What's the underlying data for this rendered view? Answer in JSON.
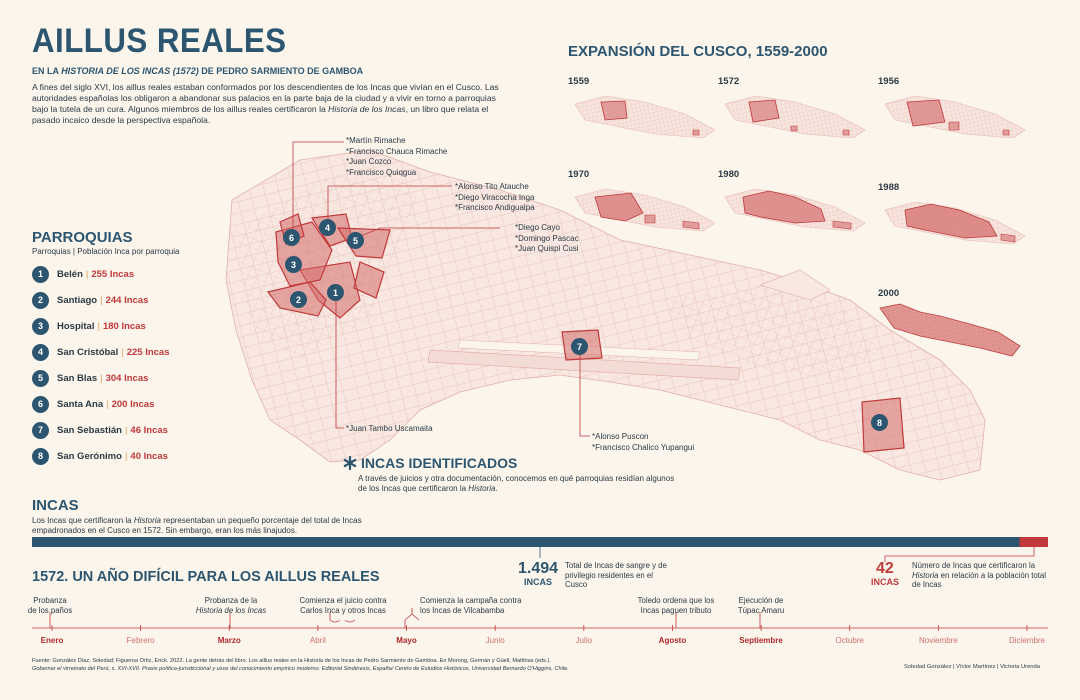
{
  "header": {
    "title": "AILLUS REALES",
    "subtitle_pre": "EN LA",
    "subtitle_italic": "HISTORIA DE LOS INCAS",
    "subtitle_year": "(1572)",
    "subtitle_post": "DE PEDRO SARMIENTO DE GAMBOA",
    "intro": "A fines del siglo XVI, los aillus reales estaban conformados por los descendientes de los Incas que vivían en el Cusco. Las autoridades españolas los obligaron a abandonar sus palacios en la parte baja de la ciudad y a vivir en torno a parroquias bajo la tutela de un cura. Algunos miembros de los aillus reales certificaron la",
    "intro_italic": "Historia de los Incas",
    "intro_post": ", un libro que relata el pasado incaico desde la perspectiva española."
  },
  "parroquias": {
    "title": "PARROQUIAS",
    "subtitle": "Parroquias | Población Inca por parroquia",
    "items": [
      {
        "n": "1",
        "name": "Belén",
        "value": "255 Incas"
      },
      {
        "n": "2",
        "name": "Santiago",
        "value": "244 Incas"
      },
      {
        "n": "3",
        "name": "Hospital",
        "value": "180 Incas"
      },
      {
        "n": "4",
        "name": "San Cristóbal",
        "value": "225 Incas"
      },
      {
        "n": "5",
        "name": "San Blas",
        "value": "304 Incas"
      },
      {
        "n": "6",
        "name": "Santa Ana",
        "value": "200 Incas"
      },
      {
        "n": "7",
        "name": "San Sebastián",
        "value": "46 Incas"
      },
      {
        "n": "8",
        "name": "San Gerónimo",
        "value": "40 Incas"
      }
    ]
  },
  "map_markers": [
    "1",
    "2",
    "3",
    "4",
    "5",
    "6",
    "7",
    "8"
  ],
  "name_groups": {
    "g1": [
      "*Martín Rimache",
      "*Francisco Chauca Rimache",
      "*Juan Cozco",
      "*Francisco Quiqgua"
    ],
    "g2": [
      "*Alonso Tito Atauche",
      "*Diego Viracocha Inga",
      "*Francisco Andigualpa"
    ],
    "g3": [
      "*Diego Cayo",
      "*Domingo Pascac",
      "*Juan Quispi Cusi"
    ],
    "g4": [
      "*Juan Tambo Uscamaita"
    ],
    "g5": [
      "*Alonso Puscon",
      "*Francisco Chalico Yupangui"
    ]
  },
  "incas_identificados": {
    "title": "INCAS IDENTIFICADOS",
    "text_pre": "A través de juicios y otra documentación, conocemos en qué parroquias residían algunos de los Incas que certificaron la",
    "text_italic": "Historia",
    "text_post": ".",
    "icon": "asterisk-icon"
  },
  "expansion": {
    "title": "EXPANSIÓN DEL CUSCO, 1559-2000",
    "years": [
      "1559",
      "1572",
      "1956",
      "1970",
      "1980",
      "1988",
      "2000"
    ]
  },
  "incas_section": {
    "title": "INCAS",
    "text_pre": "Los Incas que certificaron la",
    "text_italic": "Historia",
    "text_post": "representaban un pequeño porcentaje del total de Incas empadronados en el Cusco en 1572. Sin embargo, eran los más linajudos.",
    "total_value": 1494,
    "total_number": "1.494",
    "total_unit": "INCAS",
    "total_desc": "Total de Incas de sangre y de privilegio residentes en el Cusco",
    "certified_value": 42,
    "certified_number": "42",
    "certified_unit": "INCAS",
    "certified_desc_pre": "Número de Incas que certificaron la",
    "certified_desc_italic": "Historia",
    "certified_desc_post": "en relación a la población total de Incas"
  },
  "timeline": {
    "title": "1572. UN AÑO DIFÍCIL PARA LOS AILLUS REALES",
    "months": [
      "Enero",
      "Febrero",
      "Marzo",
      "Abril",
      "Mayo",
      "Junio",
      "Julio",
      "Agosto",
      "Septiembre",
      "Octubre",
      "Noviembre",
      "Diciembre"
    ],
    "events": [
      {
        "l1": "Probanza",
        "l2": "de los paños"
      },
      {
        "l1": "Probanza de la",
        "l2": "Historia de los Incas"
      },
      {
        "l1": "Comienza el juicio contra",
        "l2": "Carlos Inca y otros Incas"
      },
      {
        "l1": "Comienza la campaña contra",
        "l2": "los Incas de Vilcabamba"
      },
      {
        "l1": "Toledo ordena que los",
        "l2": "Incas paguen tributo"
      },
      {
        "l1": "Ejecución de",
        "l2": "Túpac Amaru"
      }
    ]
  },
  "footer": {
    "l1": "Fuente: González Díaz, Soledad; Figueroa Ortiz, Erick. 2022. La gente detrás del libro. Los aillus reales en la Historia de los Incas de Pedro Sarmiento de Gamboa. En Morong, Germán y Güell, Matthias (eds.).",
    "l2": "Gobernar el virreinato del Perú, s. XVI-XVII. Praxis política-jurisdiccional y usos del conocimiento empírico moderno. Editorial Sindéresis, España/ Centro de Estudios Históricos, Universidad Bernardo O'Higgins, Chile.",
    "credits": "Soledad González | Víctor Martínez | Victoria Urenda"
  },
  "colors": {
    "navy": "#2c5670",
    "red": "#c0393b",
    "bg": "#fbf5ec",
    "street": "#e9c4bc"
  }
}
